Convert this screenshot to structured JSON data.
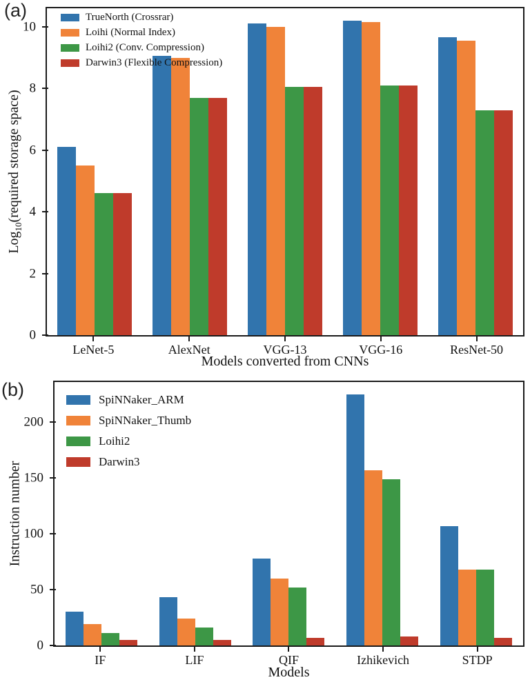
{
  "figure": {
    "background": "#ffffff",
    "axis_color": "#1a1a1a"
  },
  "chart_data": [
    {
      "type": "bar",
      "tag": "(a)",
      "xlabel": "Models converted from CNNs",
      "ylabel": "Log10(required storage space)",
      "ylabel_parts": [
        {
          "t": "Log"
        },
        {
          "sub": "10"
        },
        {
          "t": "(required storage space)"
        }
      ],
      "categories": [
        "LeNet-5",
        "AlexNet",
        "VGG-13",
        "VGG-16",
        "ResNet-50"
      ],
      "series": [
        {
          "name": "TrueNorth (Crossrar)",
          "color": "#3174ad",
          "values": [
            6.1,
            9.05,
            10.1,
            10.2,
            9.65
          ]
        },
        {
          "name": "Loihi (Normal Index)",
          "color": "#f08339",
          "values": [
            5.5,
            9.0,
            10.0,
            10.15,
            9.55
          ]
        },
        {
          "name": "Loihi2 (Conv. Compression)",
          "color": "#3d9746",
          "values": [
            4.6,
            7.7,
            8.05,
            8.1,
            7.3
          ]
        },
        {
          "name": "Darwin3 (Flexible Compression)",
          "color": "#bf3b2b",
          "values": [
            4.6,
            7.7,
            8.05,
            8.1,
            7.3
          ]
        }
      ],
      "yticks": [
        0,
        2,
        4,
        6,
        8,
        10
      ],
      "ylim": [
        0,
        10.6
      ],
      "grid": false,
      "legend_position": "top-left"
    },
    {
      "type": "bar",
      "tag": "(b)",
      "xlabel": "Models",
      "ylabel": "Instruction number",
      "ylabel_parts": [
        {
          "t": "Instruction number"
        }
      ],
      "categories": [
        "IF",
        "LIF",
        "QIF",
        "Izhikevich",
        "STDP"
      ],
      "series": [
        {
          "name": "SpiNNaker_ARM",
          "color": "#3174ad",
          "values": [
            30,
            43,
            78,
            225,
            107
          ]
        },
        {
          "name": "SpiNNaker_Thumb",
          "color": "#f08339",
          "values": [
            19,
            24,
            60,
            157,
            68
          ]
        },
        {
          "name": "Loihi2",
          "color": "#3d9746",
          "values": [
            11,
            16,
            52,
            149,
            68
          ]
        },
        {
          "name": "Darwin3",
          "color": "#bf3b2b",
          "values": [
            5,
            5,
            7,
            8,
            7
          ]
        }
      ],
      "yticks": [
        0,
        50,
        100,
        150,
        200
      ],
      "ylim": [
        0,
        236
      ],
      "grid": false,
      "legend_position": "top-left"
    }
  ]
}
